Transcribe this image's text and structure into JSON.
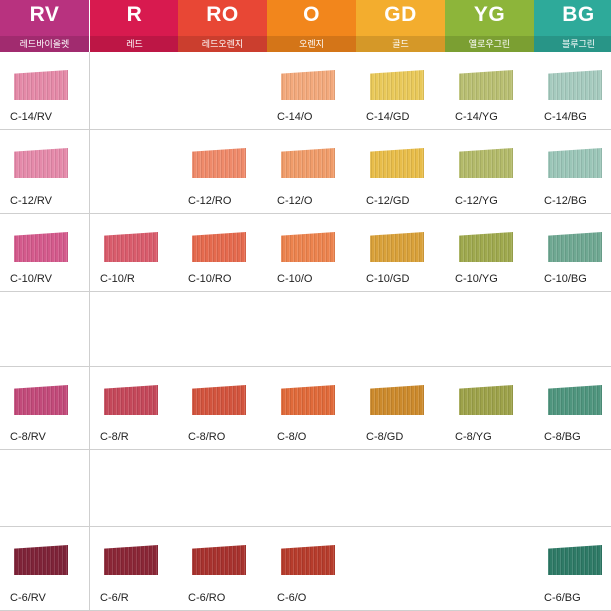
{
  "columns": [
    {
      "code": "RV",
      "name": "레드바이올렛",
      "color": "#b8327f"
    },
    {
      "code": "R",
      "name": "레드",
      "color": "#d81a4f"
    },
    {
      "code": "RO",
      "name": "레드오렌지",
      "color": "#e84735"
    },
    {
      "code": "O",
      "name": "오렌지",
      "color": "#f2861c"
    },
    {
      "code": "GD",
      "name": "골드",
      "color": "#f3ad2e"
    },
    {
      "code": "YG",
      "name": "옐로우그린",
      "color": "#8db53a"
    },
    {
      "code": "BG",
      "name": "블루그린",
      "color": "#2eaa9a"
    }
  ],
  "rows": [
    {
      "level": "14",
      "cells": [
        {
          "label": "C-14/RV",
          "color": "#e58aa8"
        },
        null,
        null,
        {
          "label": "C-14/O",
          "color": "#f3a97c"
        },
        {
          "label": "C-14/GD",
          "color": "#e9c95a"
        },
        {
          "label": "C-14/YG",
          "color": "#b9bf72"
        },
        {
          "label": "C-14/BG",
          "color": "#a6cbbf"
        }
      ]
    },
    {
      "level": "12",
      "cells": [
        {
          "label": "C-12/RV",
          "color": "#e58aaa"
        },
        null,
        {
          "label": "C-12/RO",
          "color": "#ef8a6a"
        },
        {
          "label": "C-12/O",
          "color": "#f09c6a"
        },
        {
          "label": "C-12/GD",
          "color": "#e8bd4a"
        },
        {
          "label": "C-12/YG",
          "color": "#b3ba6a"
        },
        {
          "label": "C-12/BG",
          "color": "#9bc6b8"
        }
      ]
    },
    {
      "level": "10",
      "cells": [
        {
          "label": "C-10/RV",
          "color": "#d45a8c"
        },
        {
          "label": "C-10/R",
          "color": "#d95c6c"
        },
        {
          "label": "C-10/RO",
          "color": "#e56a4e"
        },
        {
          "label": "C-10/O",
          "color": "#ec834e"
        },
        {
          "label": "C-10/GD",
          "color": "#d9a13a"
        },
        {
          "label": "C-10/YG",
          "color": "#9fa94e"
        },
        {
          "label": "C-10/BG",
          "color": "#6fa892"
        }
      ]
    },
    {
      "level": "",
      "cells": [
        null,
        null,
        null,
        null,
        null,
        null,
        null
      ]
    },
    {
      "level": "8",
      "cells": [
        {
          "label": "C-8/RV",
          "color": "#c24a7a"
        },
        {
          "label": "C-8/R",
          "color": "#c4485a"
        },
        {
          "label": "C-8/RO",
          "color": "#d2543e"
        },
        {
          "label": "C-8/O",
          "color": "#e06a3a"
        },
        {
          "label": "C-8/GD",
          "color": "#cc8a2c"
        },
        {
          "label": "C-8/YG",
          "color": "#9da24a"
        },
        {
          "label": "C-8/BG",
          "color": "#4f957e"
        }
      ]
    },
    {
      "level": "",
      "cells": [
        null,
        null,
        null,
        null,
        null,
        null,
        null
      ]
    },
    {
      "level": "6",
      "cells": [
        {
          "label": "C-6/RV",
          "color": "#7e2338"
        },
        {
          "label": "C-6/R",
          "color": "#8a2636"
        },
        {
          "label": "C-6/RO",
          "color": "#a7322e"
        },
        {
          "label": "C-6/O",
          "color": "#b63c2c"
        },
        null,
        null,
        {
          "label": "C-6/BG",
          "color": "#2e7a66"
        }
      ]
    }
  ]
}
